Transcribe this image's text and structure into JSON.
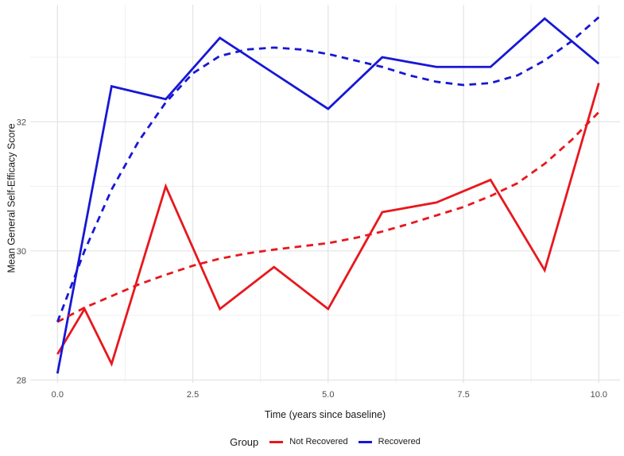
{
  "figure": {
    "background": "#ffffff"
  },
  "legend": {
    "title": "Group",
    "items": [
      {
        "label": "Not Recovered",
        "color": "#e8171d"
      },
      {
        "label": "Recovered",
        "color": "#1717d6"
      }
    ]
  },
  "chart_data": {
    "type": "line",
    "title": "",
    "xlabel": "Time (years since baseline)",
    "ylabel": "Mean General Self-Efficacy Score",
    "xlim": [
      -0.5,
      10.5
    ],
    "ylim": [
      27.95,
      33.85
    ],
    "grid": "major+minor",
    "legend_position": "bottom",
    "x_ticks": {
      "values": [
        0,
        2.5,
        5,
        7.5,
        10
      ],
      "labels": [
        "0.0",
        "2.5",
        "5.0",
        "7.5",
        "10.0"
      ]
    },
    "x_minor_ticks": [
      1.25,
      3.75,
      6.25,
      8.75
    ],
    "y_ticks": {
      "values": [
        28,
        30,
        32
      ],
      "labels": [
        "28",
        "30",
        "32"
      ]
    },
    "y_minor_ticks": [
      29,
      31,
      33
    ],
    "series": [
      {
        "name": "Not Recovered (observed)",
        "group": "Not Recovered",
        "style": "solid",
        "color": "#e8171d",
        "x": [
          0,
          0.5,
          1,
          2,
          3,
          4,
          5,
          6,
          7,
          8,
          9,
          10
        ],
        "y": [
          28.4,
          29.1,
          28.25,
          31.0,
          29.1,
          29.75,
          29.1,
          30.6,
          30.75,
          31.1,
          29.7,
          32.6
        ]
      },
      {
        "name": "Recovered (observed)",
        "group": "Recovered",
        "style": "solid",
        "color": "#1717d6",
        "x": [
          0,
          1,
          2,
          3,
          4,
          5,
          6,
          7,
          8,
          9,
          10
        ],
        "y": [
          28.1,
          32.55,
          32.35,
          33.3,
          32.75,
          32.2,
          33.0,
          32.85,
          32.85,
          33.6,
          32.9
        ]
      },
      {
        "name": "Not Recovered (smoothed trend)",
        "group": "Not Recovered",
        "style": "dashed",
        "color": "#e8171d",
        "x": [
          0,
          0.5,
          1,
          1.5,
          2,
          2.5,
          3,
          3.5,
          4,
          4.5,
          5,
          5.5,
          6,
          6.5,
          7,
          7.5,
          8,
          8.5,
          9,
          9.5,
          10
        ],
        "y": [
          28.9,
          29.12,
          29.3,
          29.48,
          29.63,
          29.77,
          29.88,
          29.96,
          30.02,
          30.07,
          30.12,
          30.2,
          30.3,
          30.42,
          30.55,
          30.68,
          30.85,
          31.05,
          31.35,
          31.72,
          32.15
        ]
      },
      {
        "name": "Recovered (smoothed trend)",
        "group": "Recovered",
        "style": "dashed",
        "color": "#1717d6",
        "x": [
          0,
          0.5,
          1,
          1.5,
          2,
          2.5,
          3,
          3.5,
          4,
          4.5,
          5,
          5.5,
          6,
          6.5,
          7,
          7.5,
          8,
          8.5,
          9,
          9.5,
          10
        ],
        "y": [
          28.9,
          30.0,
          30.95,
          31.7,
          32.3,
          32.75,
          33.02,
          33.12,
          33.15,
          33.12,
          33.05,
          32.95,
          32.85,
          32.72,
          32.62,
          32.57,
          32.6,
          32.72,
          32.95,
          33.25,
          33.62
        ]
      }
    ],
    "colors": {
      "grid_major": "#e3e3e3",
      "grid_minor": "#f0f0f0",
      "tick_label": "#4d4d4d",
      "axis_title": "#1a1a1a"
    }
  }
}
